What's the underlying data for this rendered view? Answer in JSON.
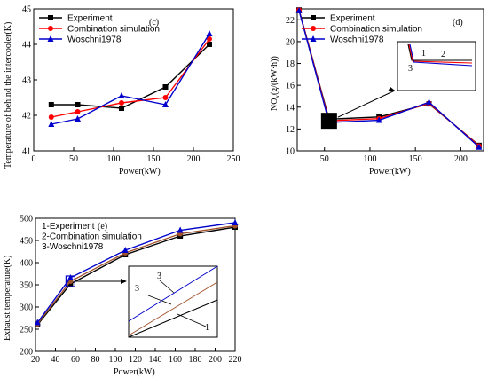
{
  "chart_data": [
    {
      "type": "line",
      "panel_label": "(c)",
      "ylabel": "Temperature of behind the intercooler(K)",
      "xlabel": "Power(kW)",
      "xlim": [
        0,
        250
      ],
      "ylim": [
        41,
        45
      ],
      "xticks": [
        "0",
        "50",
        "100",
        "150",
        "200",
        "250"
      ],
      "yticks": [
        "41",
        "42",
        "43",
        "44",
        "45"
      ],
      "legend_position": "top-left",
      "x": [
        22,
        55,
        110,
        165,
        220
      ],
      "series": [
        {
          "name": "Experiment",
          "color": "#000000",
          "marker": "square",
          "values": [
            42.3,
            42.3,
            42.2,
            42.8,
            44.0
          ]
        },
        {
          "name": "Combination simulation",
          "color": "#ff0000",
          "marker": "circle",
          "values": [
            41.95,
            42.1,
            42.35,
            42.5,
            44.15
          ]
        },
        {
          "name": "Woschni1978",
          "color": "#0000cc",
          "marker": "triangle",
          "values": [
            41.75,
            41.9,
            42.55,
            42.3,
            44.3
          ]
        }
      ]
    },
    {
      "type": "line",
      "panel_label": "(d)",
      "ylabel_main": "NO",
      "ylabel_sub": "x",
      "ylabel_rest": "(g/(kW·h))",
      "xlabel": "Power(kW)",
      "xlim": [
        20,
        225
      ],
      "ylim": [
        10,
        23
      ],
      "xticks": [
        "50",
        "100",
        "150",
        "200"
      ],
      "yticks": [
        "10",
        "12",
        "14",
        "16",
        "18",
        "20",
        "22"
      ],
      "legend_position": "top-left",
      "x": [
        22,
        55,
        110,
        165,
        220
      ],
      "series": [
        {
          "name": "Experiment",
          "color": "#000000",
          "marker": "square",
          "values": [
            22.9,
            12.9,
            13.1,
            14.3,
            10.5
          ]
        },
        {
          "name": "Combination simulation",
          "color": "#ff0000",
          "marker": "circle",
          "values": [
            22.9,
            12.75,
            12.95,
            14.35,
            10.45
          ]
        },
        {
          "name": "Woschni1978",
          "color": "#0000cc",
          "marker": "triangle",
          "values": [
            22.85,
            12.6,
            12.8,
            14.45,
            10.35
          ]
        }
      ],
      "inset_labels": [
        "1",
        "2",
        "3"
      ]
    },
    {
      "type": "line",
      "panel_label": "(e)",
      "ylabel": "Exhaust temperature(K)",
      "xlabel": "Power(kW)",
      "xlim": [
        20,
        220
      ],
      "ylim": [
        200,
        500
      ],
      "xticks": [
        "20",
        "40",
        "60",
        "80",
        "100",
        "120",
        "140",
        "160",
        "180",
        "200",
        "220"
      ],
      "yticks": [
        "200",
        "250",
        "300",
        "350",
        "400",
        "450",
        "500"
      ],
      "legend_lines": [
        "1-Experiment",
        "2-Combination simulation",
        "3-Woschni1978"
      ],
      "x": [
        22,
        55,
        110,
        165,
        220
      ],
      "series": [
        {
          "name": "1-Experiment",
          "color": "#000000",
          "marker": "square",
          "values": [
            260,
            352,
            418,
            460,
            480
          ]
        },
        {
          "name": "2-Combination simulation",
          "color": "#a0522d",
          "marker": "circle",
          "values": [
            262,
            358,
            422,
            465,
            483
          ]
        },
        {
          "name": "3-Woschni1978",
          "color": "#0000cc",
          "marker": "triangle",
          "values": [
            265,
            366,
            428,
            473,
            490
          ]
        }
      ],
      "inset_labels": [
        "3",
        "3",
        "1"
      ]
    }
  ]
}
